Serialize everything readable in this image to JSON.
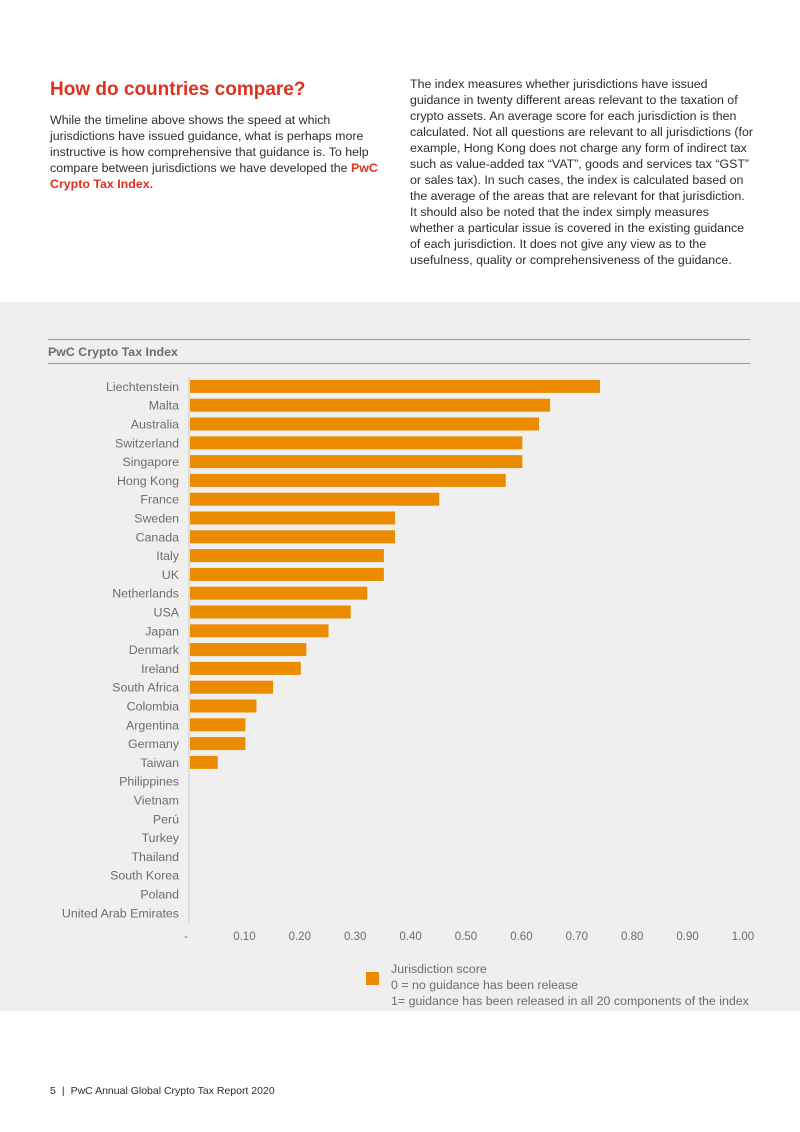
{
  "intro": {
    "heading": "How do countries compare?",
    "left_text": "While the timeline above shows the speed at which jurisdictions have issued guidance, what is perhaps more instructive is how comprehensive that guidance is. To help compare between jurisdictions we have developed the",
    "left_highlight": "PwC Crypto Tax Index.",
    "right_text": "The index measures whether jurisdictions have issued guidance in twenty different areas relevant to the taxation of crypto assets. An average score for each jurisdiction is then calculated. Not all questions are relevant to all jurisdictions (for example, Hong Kong does not charge any form of indirect tax such as value-added tax “VAT”, goods and services tax “GST” or sales tax). In such cases, the index is calculated based on the average of the areas that are relevant for that jurisdiction. It should also be noted that the index simply measures whether a particular issue is covered in the existing guidance of each jurisdiction. It does not give any view as to the usefulness, quality or comprehensiveness of the guidance."
  },
  "chart_data": {
    "type": "bar",
    "orientation": "horizontal",
    "title": "PwC Crypto Tax Index",
    "categories": [
      "Liechtenstein",
      "Malta",
      "Australia",
      "Switzerland",
      "Singapore",
      "Hong Kong",
      "France",
      "Sweden",
      "Canada",
      "Italy",
      "UK",
      "Netherlands",
      "USA",
      "Japan",
      "Denmark",
      "Ireland",
      "South Africa",
      "Colombia",
      "Argentina",
      "Germany",
      "Taiwan",
      "Philippines",
      "Vietnam",
      "Perú",
      "Turkey",
      "Thailand",
      "South Korea",
      "Poland",
      "United Arab Emirates"
    ],
    "values": [
      0.74,
      0.65,
      0.63,
      0.6,
      0.6,
      0.57,
      0.45,
      0.37,
      0.37,
      0.35,
      0.35,
      0.32,
      0.29,
      0.25,
      0.21,
      0.2,
      0.15,
      0.12,
      0.1,
      0.1,
      0.05,
      0,
      0,
      0,
      0,
      0,
      0,
      0,
      0
    ],
    "xlim": [
      0,
      1.0
    ],
    "x_ticks": [
      "-",
      "0.10",
      "0.20",
      "0.30",
      "0.40",
      "0.50",
      "0.60",
      "0.70",
      "0.80",
      "0.90",
      "1.00"
    ],
    "grid": false,
    "bar_color": "#eb8c00",
    "legend": {
      "placement": "bottom",
      "lines": [
        "Jurisdiction score",
        "0 = no guidance has been release",
        "1= guidance has been released in all 20 components of the index"
      ]
    }
  },
  "footer": {
    "page_number": "5",
    "separator": "|",
    "report_title": "PwC Annual Global Crypto Tax Report 2020"
  }
}
